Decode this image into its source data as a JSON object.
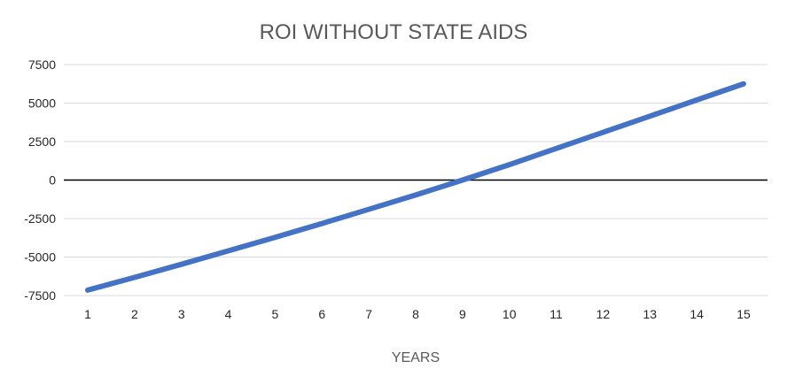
{
  "chart_data": {
    "type": "line",
    "title": "ROI WITHOUT STATE AIDS",
    "xlabel": "YEARS",
    "ylabel": "",
    "categories": [
      "1",
      "2",
      "3",
      "4",
      "5",
      "6",
      "7",
      "8",
      "9",
      "10",
      "11",
      "12",
      "13",
      "14",
      "15"
    ],
    "series": [
      {
        "name": "ROI",
        "values": [
          -7150,
          -6320,
          -5470,
          -4600,
          -3720,
          -2820,
          -1900,
          -970,
          0,
          1000,
          2050,
          3100,
          4150,
          5200,
          6250
        ]
      }
    ],
    "y_ticks": [
      "7500",
      "5000",
      "2500",
      "0",
      "-2500",
      "-5000",
      "-7500"
    ],
    "ylim": [
      -7500,
      7500
    ],
    "grid": true,
    "legend": "none"
  },
  "colors": {
    "series": "#4472C4",
    "grid": "#d9d9d9",
    "zero_line": "#000000",
    "title": "#595959",
    "ticks": "#262626"
  }
}
